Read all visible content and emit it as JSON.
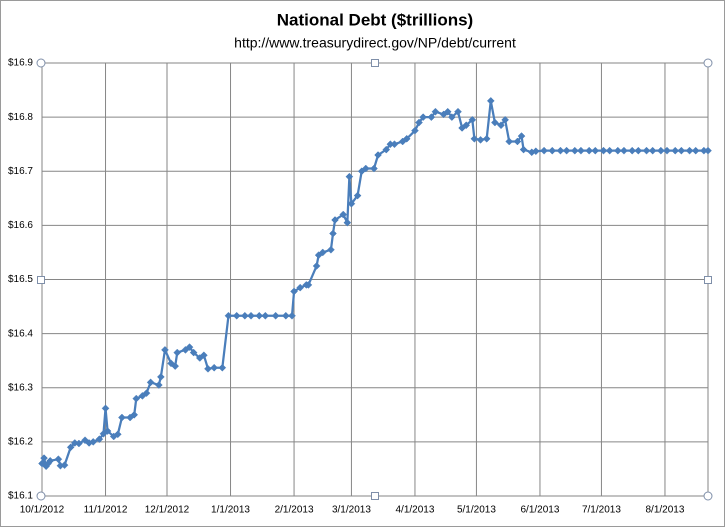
{
  "chart_data": {
    "type": "line",
    "title": "National Debt ($trillions)",
    "subtitle": "http://www.treasurydirect.gov/NP/debt/current",
    "color": "#4a7ebb",
    "marker": "diamond",
    "grid": true,
    "x": [
      "2012-10-01",
      "2012-10-02",
      "2012-10-03",
      "2012-10-04",
      "2012-10-05",
      "2012-10-09",
      "2012-10-10",
      "2012-10-12",
      "2012-10-15",
      "2012-10-17",
      "2012-10-19",
      "2012-10-22",
      "2012-10-24",
      "2012-10-26",
      "2012-10-29",
      "2012-10-31",
      "2012-11-01",
      "2012-11-02",
      "2012-11-05",
      "2012-11-07",
      "2012-11-09",
      "2012-11-13",
      "2012-11-15",
      "2012-11-16",
      "2012-11-19",
      "2012-11-21",
      "2012-11-23",
      "2012-11-27",
      "2012-11-28",
      "2012-11-30",
      "2012-12-03",
      "2012-12-05",
      "2012-12-06",
      "2012-12-10",
      "2012-12-12",
      "2012-12-14",
      "2012-12-17",
      "2012-12-19",
      "2012-12-21",
      "2012-12-24",
      "2012-12-28",
      "2012-12-31",
      "2013-01-04",
      "2013-01-08",
      "2013-01-11",
      "2013-01-15",
      "2013-01-18",
      "2013-01-23",
      "2013-01-28",
      "2013-01-31",
      "2013-02-01",
      "2013-02-04",
      "2013-02-07",
      "2013-02-08",
      "2013-02-12",
      "2013-02-13",
      "2013-02-15",
      "2013-02-19",
      "2013-02-20",
      "2013-02-21",
      "2013-02-25",
      "2013-02-27",
      "2013-02-28",
      "2013-03-01",
      "2013-03-04",
      "2013-03-06",
      "2013-03-08",
      "2013-03-12",
      "2013-03-14",
      "2013-03-18",
      "2013-03-20",
      "2013-03-22",
      "2013-03-26",
      "2013-03-28",
      "2013-04-01",
      "2013-04-03",
      "2013-04-05",
      "2013-04-09",
      "2013-04-11",
      "2013-04-15",
      "2013-04-17",
      "2013-04-19",
      "2013-04-22",
      "2013-04-24",
      "2013-04-26",
      "2013-04-29",
      "2013-04-30",
      "2013-05-03",
      "2013-05-06",
      "2013-05-08",
      "2013-05-10",
      "2013-05-13",
      "2013-05-15",
      "2013-05-17",
      "2013-05-21",
      "2013-05-23",
      "2013-05-24",
      "2013-05-28",
      "2013-05-30",
      "2013-06-03",
      "2013-06-07",
      "2013-06-11",
      "2013-06-14",
      "2013-06-18",
      "2013-06-21",
      "2013-06-25",
      "2013-06-28",
      "2013-07-02",
      "2013-07-05",
      "2013-07-09",
      "2013-07-12",
      "2013-07-16",
      "2013-07-19",
      "2013-07-23",
      "2013-07-26",
      "2013-07-30",
      "2013-08-02",
      "2013-08-06",
      "2013-08-09",
      "2013-08-13",
      "2013-08-16",
      "2013-08-20",
      "2013-08-22"
    ],
    "values": [
      16.16,
      16.17,
      16.155,
      16.16,
      16.165,
      16.168,
      16.156,
      16.157,
      16.19,
      16.198,
      16.197,
      16.203,
      16.198,
      16.2,
      16.205,
      16.215,
      16.262,
      16.22,
      16.21,
      16.214,
      16.245,
      16.245,
      16.25,
      16.28,
      16.285,
      16.29,
      16.31,
      16.305,
      16.32,
      16.37,
      16.345,
      16.34,
      16.365,
      16.37,
      16.375,
      16.365,
      16.355,
      16.36,
      16.335,
      16.337,
      16.337,
      16.433,
      16.433,
      16.433,
      16.433,
      16.433,
      16.433,
      16.433,
      16.433,
      16.433,
      16.478,
      16.485,
      16.49,
      16.49,
      16.525,
      16.545,
      16.55,
      16.555,
      16.585,
      16.61,
      16.62,
      16.605,
      16.69,
      16.64,
      16.655,
      16.7,
      16.705,
      16.705,
      16.73,
      16.74,
      16.75,
      16.75,
      16.755,
      16.76,
      16.775,
      16.79,
      16.8,
      16.8,
      16.81,
      16.805,
      16.81,
      16.8,
      16.81,
      16.78,
      16.785,
      16.795,
      16.76,
      16.758,
      16.76,
      16.83,
      16.79,
      16.785,
      16.795,
      16.755,
      16.755,
      16.765,
      16.74,
      16.735,
      16.737,
      16.738,
      16.738,
      16.738,
      16.738,
      16.738,
      16.738,
      16.738,
      16.738,
      16.738,
      16.738,
      16.738,
      16.738,
      16.738,
      16.738,
      16.738,
      16.738,
      16.738,
      16.738,
      16.738,
      16.738,
      16.738,
      16.738,
      16.738,
      16.738
    ],
    "xlim": [
      "2012-10-01",
      "2013-08-22"
    ],
    "xticks": [
      {
        "value": "2012-10-01",
        "label": "10/1/2012"
      },
      {
        "value": "2012-11-01",
        "label": "11/1/2012"
      },
      {
        "value": "2012-12-01",
        "label": "12/1/2012"
      },
      {
        "value": "2013-01-01",
        "label": "1/1/2013"
      },
      {
        "value": "2013-02-01",
        "label": "2/1/2013"
      },
      {
        "value": "2013-03-01",
        "label": "3/1/2013"
      },
      {
        "value": "2013-04-01",
        "label": "4/1/2013"
      },
      {
        "value": "2013-05-01",
        "label": "5/1/2013"
      },
      {
        "value": "2013-06-01",
        "label": "6/1/2013"
      },
      {
        "value": "2013-07-01",
        "label": "7/1/2013"
      },
      {
        "value": "2013-08-01",
        "label": "8/1/2013"
      }
    ],
    "ylim": [
      16.1,
      16.9
    ],
    "yticks": [
      {
        "value": 16.1,
        "label": "$16.1"
      },
      {
        "value": 16.2,
        "label": "$16.2"
      },
      {
        "value": 16.3,
        "label": "$16.3"
      },
      {
        "value": 16.4,
        "label": "$16.4"
      },
      {
        "value": 16.5,
        "label": "$16.5"
      },
      {
        "value": 16.6,
        "label": "$16.6"
      },
      {
        "value": 16.7,
        "label": "$16.7"
      },
      {
        "value": 16.8,
        "label": "$16.8"
      },
      {
        "value": 16.9,
        "label": "$16.9"
      }
    ]
  }
}
